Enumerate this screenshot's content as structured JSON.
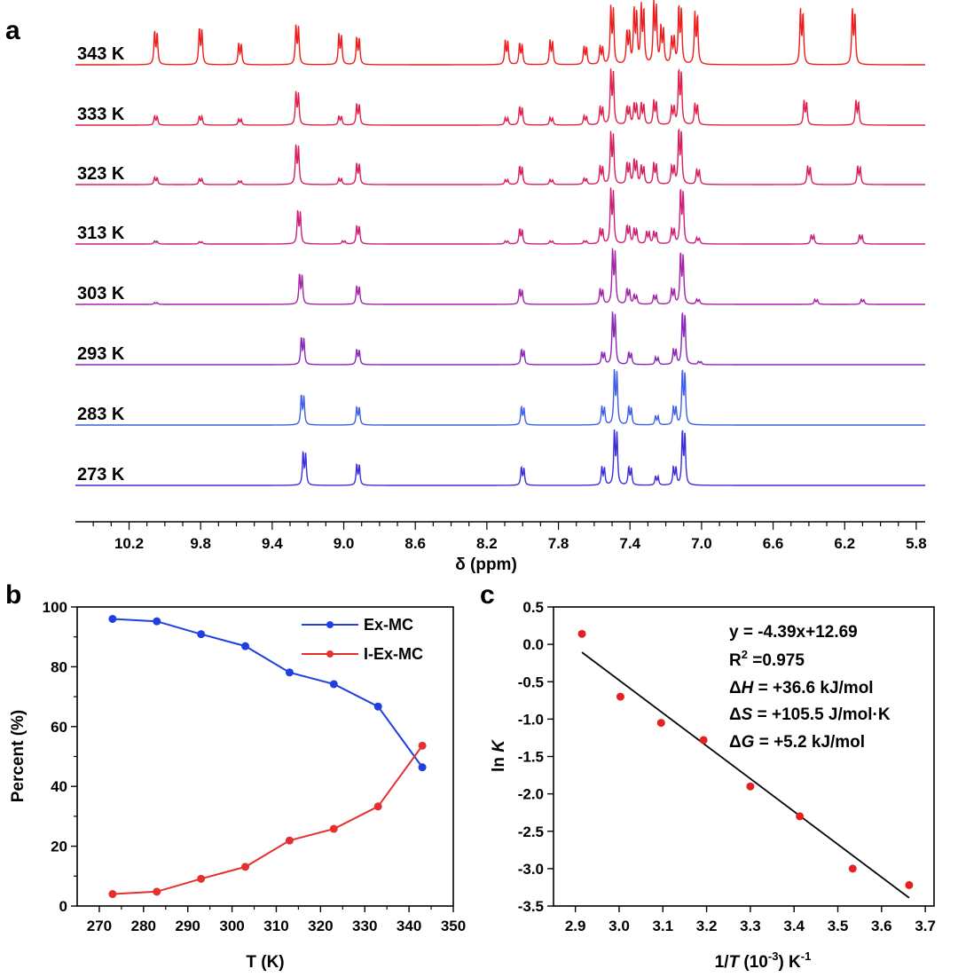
{
  "panels": {
    "a": "a",
    "b": "b",
    "c": "c"
  },
  "chart_data": [
    {
      "type": "line",
      "panel": "a",
      "x_axis": {
        "label": "δ (ppm)",
        "range": [
          10.5,
          5.75
        ],
        "ticks": [
          "10.2",
          "9.8",
          "9.4",
          "9.0",
          "8.6",
          "8.2",
          "7.8",
          "7.4",
          "7.0",
          "6.6",
          "6.2",
          "5.8"
        ]
      },
      "series": [
        {
          "name": "343 K",
          "color": "#ee1c1c",
          "peaks": [
            [
              10.05,
              0.55
            ],
            [
              9.8,
              0.6
            ],
            [
              9.58,
              0.35
            ],
            [
              9.26,
              0.65
            ],
            [
              9.02,
              0.5
            ],
            [
              8.92,
              0.45
            ],
            [
              8.09,
              0.4
            ],
            [
              8.01,
              0.35
            ],
            [
              7.84,
              0.4
            ],
            [
              7.65,
              0.3
            ],
            [
              7.56,
              0.3
            ],
            [
              7.5,
              0.95
            ],
            [
              7.41,
              0.55
            ],
            [
              7.37,
              0.9
            ],
            [
              7.33,
              0.95
            ],
            [
              7.26,
              1.0
            ],
            [
              7.22,
              0.6
            ],
            [
              7.16,
              0.45
            ],
            [
              7.12,
              0.95
            ],
            [
              7.03,
              0.85
            ],
            [
              6.44,
              0.9
            ],
            [
              6.15,
              0.9
            ]
          ]
        },
        {
          "name": "333 K",
          "color": "#e0204a",
          "peaks": [
            [
              10.05,
              0.15
            ],
            [
              9.8,
              0.15
            ],
            [
              9.58,
              0.1
            ],
            [
              9.26,
              0.55
            ],
            [
              9.02,
              0.15
            ],
            [
              8.92,
              0.35
            ],
            [
              8.09,
              0.12
            ],
            [
              8.01,
              0.3
            ],
            [
              7.84,
              0.12
            ],
            [
              7.65,
              0.15
            ],
            [
              7.56,
              0.3
            ],
            [
              7.5,
              0.9
            ],
            [
              7.41,
              0.3
            ],
            [
              7.37,
              0.35
            ],
            [
              7.33,
              0.35
            ],
            [
              7.26,
              0.4
            ],
            [
              7.16,
              0.3
            ],
            [
              7.12,
              0.9
            ],
            [
              7.03,
              0.35
            ],
            [
              6.42,
              0.4
            ],
            [
              6.13,
              0.4
            ]
          ]
        },
        {
          "name": "323 K",
          "color": "#d61f5c",
          "peaks": [
            [
              10.05,
              0.12
            ],
            [
              9.8,
              0.1
            ],
            [
              9.58,
              0.06
            ],
            [
              9.26,
              0.65
            ],
            [
              9.02,
              0.1
            ],
            [
              8.92,
              0.35
            ],
            [
              8.09,
              0.08
            ],
            [
              8.01,
              0.3
            ],
            [
              7.84,
              0.08
            ],
            [
              7.65,
              0.1
            ],
            [
              7.56,
              0.3
            ],
            [
              7.5,
              0.85
            ],
            [
              7.41,
              0.35
            ],
            [
              7.37,
              0.4
            ],
            [
              7.33,
              0.3
            ],
            [
              7.26,
              0.35
            ],
            [
              7.16,
              0.3
            ],
            [
              7.12,
              0.9
            ],
            [
              7.02,
              0.25
            ],
            [
              6.4,
              0.3
            ],
            [
              6.12,
              0.3
            ]
          ]
        },
        {
          "name": "313 K",
          "color": "#cc1f78",
          "peaks": [
            [
              10.05,
              0.05
            ],
            [
              9.8,
              0.04
            ],
            [
              9.25,
              0.55
            ],
            [
              9.0,
              0.05
            ],
            [
              8.92,
              0.3
            ],
            [
              8.09,
              0.05
            ],
            [
              8.01,
              0.25
            ],
            [
              7.84,
              0.05
            ],
            [
              7.65,
              0.05
            ],
            [
              7.56,
              0.25
            ],
            [
              7.5,
              0.9
            ],
            [
              7.41,
              0.3
            ],
            [
              7.37,
              0.25
            ],
            [
              7.3,
              0.2
            ],
            [
              7.26,
              0.2
            ],
            [
              7.16,
              0.25
            ],
            [
              7.11,
              0.9
            ],
            [
              7.02,
              0.1
            ],
            [
              6.38,
              0.15
            ],
            [
              6.11,
              0.15
            ]
          ]
        },
        {
          "name": "303 K",
          "color": "#a424a8",
          "peaks": [
            [
              10.05,
              0.03
            ],
            [
              9.24,
              0.5
            ],
            [
              8.92,
              0.3
            ],
            [
              8.01,
              0.25
            ],
            [
              7.56,
              0.25
            ],
            [
              7.49,
              0.9
            ],
            [
              7.41,
              0.25
            ],
            [
              7.37,
              0.15
            ],
            [
              7.26,
              0.15
            ],
            [
              7.16,
              0.25
            ],
            [
              7.11,
              0.85
            ],
            [
              7.02,
              0.08
            ],
            [
              6.36,
              0.08
            ],
            [
              6.1,
              0.08
            ]
          ]
        },
        {
          "name": "293 K",
          "color": "#8a26b8",
          "peaks": [
            [
              9.23,
              0.45
            ],
            [
              8.92,
              0.25
            ],
            [
              8.0,
              0.25
            ],
            [
              7.55,
              0.2
            ],
            [
              7.49,
              0.85
            ],
            [
              7.4,
              0.2
            ],
            [
              7.25,
              0.12
            ],
            [
              7.15,
              0.25
            ],
            [
              7.1,
              0.85
            ],
            [
              7.01,
              0.05
            ]
          ]
        },
        {
          "name": "283 K",
          "color": "#3e5fe6",
          "peaks": [
            [
              9.23,
              0.5
            ],
            [
              8.92,
              0.3
            ],
            [
              8.0,
              0.3
            ],
            [
              7.55,
              0.3
            ],
            [
              7.48,
              0.9
            ],
            [
              7.4,
              0.3
            ],
            [
              7.25,
              0.15
            ],
            [
              7.15,
              0.3
            ],
            [
              7.1,
              0.9
            ]
          ]
        },
        {
          "name": "273 K",
          "color": "#3c2ddb",
          "peaks": [
            [
              9.22,
              0.55
            ],
            [
              8.92,
              0.35
            ],
            [
              8.0,
              0.3
            ],
            [
              7.55,
              0.3
            ],
            [
              7.48,
              0.9
            ],
            [
              7.4,
              0.3
            ],
            [
              7.25,
              0.15
            ],
            [
              7.15,
              0.3
            ],
            [
              7.1,
              0.9
            ]
          ]
        }
      ]
    },
    {
      "type": "line",
      "panel": "b",
      "x_axis": {
        "label": "T (K)",
        "range": [
          265,
          350
        ],
        "ticks": [
          270,
          280,
          290,
          300,
          310,
          320,
          330,
          340,
          350
        ]
      },
      "y_axis": {
        "label": "Percent (%)",
        "range": [
          0,
          100
        ],
        "ticks": [
          0,
          20,
          40,
          60,
          80,
          100
        ]
      },
      "legend": "top-right",
      "series": [
        {
          "name": "Ex-MC",
          "color": "#1f3fe0",
          "x": [
            273,
            283,
            293,
            303,
            313,
            323,
            333,
            343
          ],
          "y": [
            96.0,
            95.2,
            90.9,
            86.9,
            78.1,
            74.2,
            66.7,
            46.4
          ]
        },
        {
          "name": "I-Ex-MC",
          "color": "#e53030",
          "x": [
            273,
            283,
            293,
            303,
            313,
            323,
            333,
            343
          ],
          "y": [
            4.0,
            4.8,
            9.1,
            13.1,
            21.9,
            25.8,
            33.3,
            53.6
          ]
        }
      ]
    },
    {
      "type": "scatter",
      "panel": "c",
      "x_axis": {
        "label_parts": [
          "1/",
          "T",
          " (10",
          "-3",
          ") K",
          "-1"
        ],
        "range": [
          2.85,
          3.72
        ],
        "ticks": [
          "2.9",
          "3.0",
          "3.1",
          "3.2",
          "3.3",
          "3.4",
          "3.5",
          "3.6",
          "3.7"
        ]
      },
      "y_axis": {
        "label_parts": [
          "ln ",
          "K"
        ],
        "range": [
          -3.5,
          0.5
        ],
        "ticks": [
          "0.5",
          "0.0",
          "-0.5",
          "-1.0",
          "-1.5",
          "-2.0",
          "-2.5",
          "-3.0",
          "-3.5"
        ]
      },
      "points": {
        "color": "#e52020",
        "x": [
          2.915,
          3.003,
          3.096,
          3.193,
          3.3,
          3.413,
          3.534,
          3.663
        ],
        "y": [
          0.14,
          -0.7,
          -1.05,
          -1.28,
          -1.9,
          -2.3,
          -3.0,
          -3.22
        ]
      },
      "fit": {
        "color": "#000000",
        "slope": -4.39,
        "intercept": 12.69,
        "x_range": [
          2.915,
          3.663
        ]
      },
      "annotations": {
        "eq": "y = -4.39x+12.69",
        "r2_base": "R",
        "r2_sup": "2",
        "r2_rest": " =0.975",
        "dh_pre": "Δ",
        "dh_var": "H",
        "dh_rest": " = +36.6 kJ/mol",
        "ds_pre": "Δ",
        "ds_var": "S",
        "ds_rest": " = +105.5 J/mol·K",
        "dg_pre": "Δ",
        "dg_var": "G",
        "dg_rest": " = +5.2 kJ/mol"
      }
    }
  ]
}
